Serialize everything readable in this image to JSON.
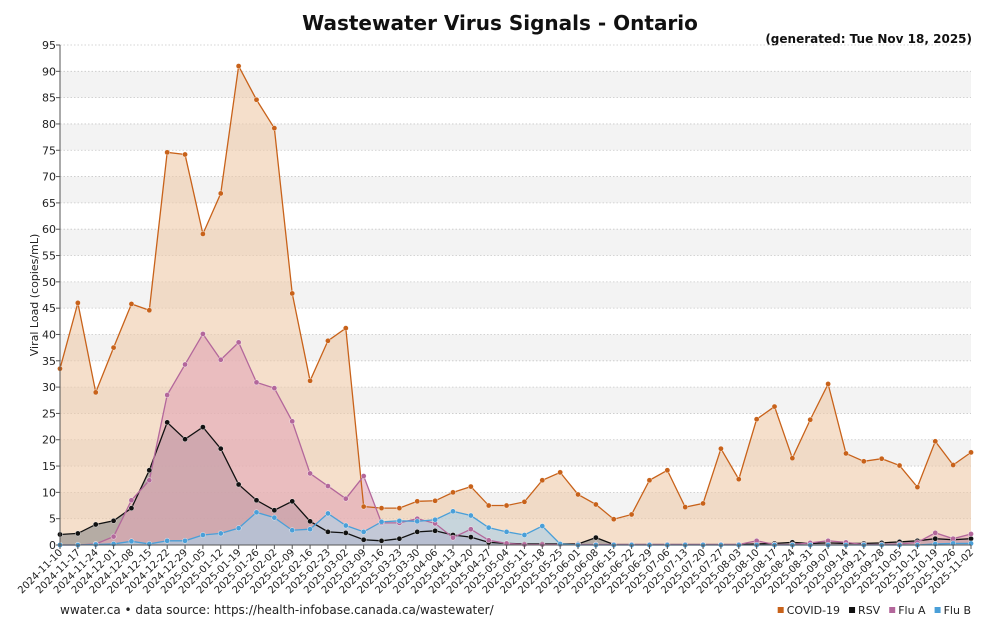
{
  "chart_data": {
    "type": "area",
    "title": "Wastewater Virus Signals - Ontario",
    "subtitle": "(generated: Tue Nov 18, 2025)",
    "ylabel": "Viral Load (copies/mL)",
    "xlabel": "",
    "ylim": [
      0,
      95
    ],
    "yticks": [
      0,
      5,
      10,
      15,
      20,
      25,
      30,
      35,
      40,
      45,
      50,
      55,
      60,
      65,
      70,
      75,
      80,
      85,
      90,
      95
    ],
    "grid": true,
    "legend_position": "bottom-right",
    "footer": "wwater.ca • data source: https://health-infobase.canada.ca/wastewater/",
    "categories": [
      "2024-11-10",
      "2024-11-17",
      "2024-11-24",
      "2024-12-01",
      "2024-12-08",
      "2024-12-15",
      "2024-12-22",
      "2024-12-29",
      "2025-01-05",
      "2025-01-12",
      "2025-01-19",
      "2025-01-26",
      "2025-02-02",
      "2025-02-09",
      "2025-02-16",
      "2025-02-23",
      "2025-03-02",
      "2025-03-09",
      "2025-03-16",
      "2025-03-23",
      "2025-03-30",
      "2025-04-06",
      "2025-04-13",
      "2025-04-20",
      "2025-04-27",
      "2025-05-04",
      "2025-05-11",
      "2025-05-18",
      "2025-05-25",
      "2025-06-01",
      "2025-06-08",
      "2025-06-15",
      "2025-06-22",
      "2025-06-29",
      "2025-07-06",
      "2025-07-13",
      "2025-07-20",
      "2025-07-27",
      "2025-08-03",
      "2025-08-10",
      "2025-08-17",
      "2025-08-24",
      "2025-08-31",
      "2025-09-07",
      "2025-09-14",
      "2025-09-21",
      "2025-09-28",
      "2025-10-05",
      "2025-10-12",
      "2025-10-19",
      "2025-10-26",
      "2025-11-02"
    ],
    "series": [
      {
        "name": "COVID-19",
        "color": "#c8621a",
        "fill": "#efc9a8",
        "values": [
          33.5,
          46,
          29,
          37.5,
          45.8,
          44.6,
          74.6,
          74.2,
          59.1,
          66.8,
          91,
          84.6,
          79.2,
          47.8,
          31.2,
          38.8,
          41.2,
          7.3,
          7.0,
          7.0,
          8.3,
          8.4,
          10.0,
          11.1,
          7.5,
          7.5,
          8.2,
          12.3,
          13.8,
          9.6,
          7.7,
          4.9,
          5.8,
          12.3,
          14.2,
          7.2,
          7.9,
          18.3,
          12.5,
          23.9,
          26.3,
          16.5,
          23.8,
          30.6,
          17.4,
          15.9,
          16.4,
          15.1,
          11.0,
          19.7,
          15.2,
          17.6
        ]
      },
      {
        "name": "RSV",
        "color": "#111111",
        "fill": "#8a8a8a",
        "values": [
          2.0,
          2.2,
          3.9,
          4.6,
          7.0,
          14.2,
          23.3,
          20.1,
          22.4,
          18.3,
          11.5,
          8.5,
          6.6,
          8.3,
          4.5,
          2.5,
          2.3,
          1.0,
          0.8,
          1.2,
          2.5,
          2.7,
          1.9,
          1.5,
          0.5,
          0.3,
          0.2,
          0.2,
          0.2,
          0.2,
          1.4,
          0.1,
          0.1,
          0.1,
          0.1,
          0.1,
          0.1,
          0.1,
          0.1,
          0.2,
          0.3,
          0.5,
          0.3,
          0.4,
          0.3,
          0.3,
          0.4,
          0.6,
          0.8,
          1.2,
          1.0,
          1.2
        ]
      },
      {
        "name": "Flu A",
        "color": "#b3679b",
        "fill": "#e3a6b8",
        "values": [
          0.0,
          0.0,
          0.2,
          1.6,
          8.5,
          12.3,
          28.5,
          34.3,
          40.1,
          35.2,
          38.5,
          30.9,
          29.8,
          23.5,
          13.6,
          11.2,
          8.8,
          13.1,
          4.2,
          4.2,
          5.0,
          4.1,
          1.4,
          3.0,
          0.9,
          0.3,
          0.1,
          0.1,
          0.1,
          0.1,
          0.1,
          0.1,
          0.1,
          0.1,
          0.1,
          0.1,
          0.1,
          0.1,
          0.1,
          0.8,
          0.1,
          0.1,
          0.4,
          0.8,
          0.5,
          0.1,
          0.1,
          0.2,
          0.5,
          2.3,
          1.2,
          2.1
        ]
      },
      {
        "name": "Flu B",
        "color": "#4a9fd8",
        "fill": "#a8cfe8",
        "values": [
          0.0,
          0.0,
          0.1,
          0.2,
          0.7,
          0.2,
          0.8,
          0.8,
          1.9,
          2.2,
          3.2,
          6.2,
          5.2,
          2.8,
          3.0,
          6.0,
          3.7,
          2.5,
          4.4,
          4.6,
          4.5,
          4.8,
          6.4,
          5.6,
          3.3,
          2.5,
          1.9,
          3.6,
          0.2,
          0.0,
          0.0,
          0.0,
          0.0,
          0.0,
          0.0,
          0.0,
          0.0,
          0.0,
          0.0,
          0.0,
          0.0,
          0.0,
          0.0,
          0.0,
          0.0,
          0.0,
          0.0,
          0.0,
          0.0,
          0.2,
          0.3,
          0.3
        ]
      }
    ]
  }
}
